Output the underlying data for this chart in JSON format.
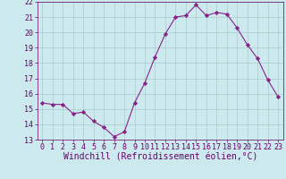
{
  "x": [
    0,
    1,
    2,
    3,
    4,
    5,
    6,
    7,
    8,
    9,
    10,
    11,
    12,
    13,
    14,
    15,
    16,
    17,
    18,
    19,
    20,
    21,
    22,
    23
  ],
  "y": [
    15.4,
    15.3,
    15.3,
    14.7,
    14.8,
    14.2,
    13.8,
    13.2,
    13.5,
    15.4,
    16.7,
    18.4,
    19.9,
    21.0,
    21.1,
    21.8,
    21.1,
    21.3,
    21.2,
    20.3,
    19.2,
    18.3,
    16.9,
    15.8
  ],
  "line_color": "#882288",
  "marker": "D",
  "marker_size": 2.2,
  "bg_color": "#cceaee",
  "grid_color": "#aacccc",
  "xlabel": "Windchill (Refroidissement éolien,°C)",
  "xlim": [
    -0.5,
    23.5
  ],
  "ylim": [
    13,
    22
  ],
  "yticks": [
    13,
    14,
    15,
    16,
    17,
    18,
    19,
    20,
    21,
    22
  ],
  "xticks": [
    0,
    1,
    2,
    3,
    4,
    5,
    6,
    7,
    8,
    9,
    10,
    11,
    12,
    13,
    14,
    15,
    16,
    17,
    18,
    19,
    20,
    21,
    22,
    23
  ],
  "xlabel_fontsize": 7.0,
  "tick_fontsize": 6.0,
  "tick_color": "#660066",
  "label_color": "#660066",
  "spine_color": "#660066",
  "linewidth": 0.8
}
